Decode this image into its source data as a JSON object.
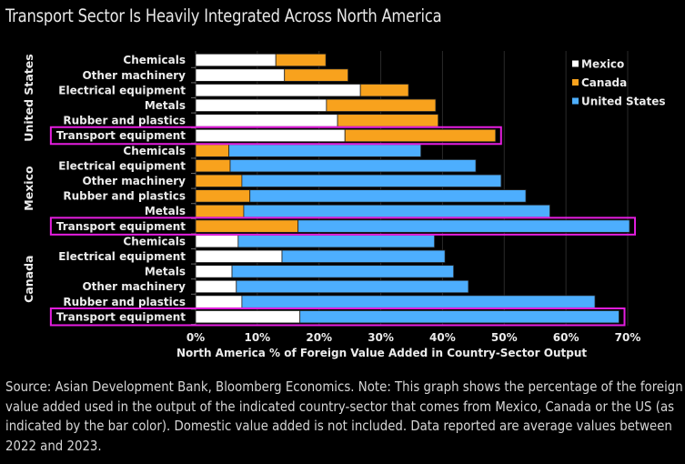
{
  "title": "Transport Sector Is Heavily Integrated Across North America",
  "source_note": "Source: Asian Development Bank, Bloomberg Economics. Note: This graph shows the percentage of the foreign value added used in the output of the indicated country-sector that comes from Mexico, Canada or the US (as indicated by the bar color). Domestic value added is not included. Data reported are average values between 2022 and 2023.",
  "colors": {
    "Mexico": "#ffffff",
    "Canada": "#f8a21d",
    "United States": "#4daefe",
    "highlight": "#e51ee0",
    "gridline": "#2a2a2a"
  },
  "chart_data": {
    "type": "bar",
    "orientation": "horizontal",
    "stacked": true,
    "title": "Transport Sector Is Heavily Integrated Across North America",
    "xlabel": "North America % of Foreign Value Added in Country-Sector Output",
    "ylabel": "",
    "xlim": [
      0,
      70
    ],
    "xticks": [
      "0%",
      "10%",
      "20%",
      "30%",
      "40%",
      "50%",
      "60%",
      "70%"
    ],
    "grid": true,
    "legend": {
      "position": "top-right",
      "entries": [
        "Mexico",
        "Canada",
        "United States"
      ]
    },
    "highlighted_category": "Transport equipment",
    "groups": [
      {
        "name": "United States",
        "categories": [
          "Chemicals",
          "Other machinery",
          "Electrical equipment",
          "Metals",
          "Rubber and plastics",
          "Transport equipment"
        ],
        "series": [
          {
            "name": "Mexico",
            "values": [
              13.0,
              14.4,
              26.7,
              21.2,
              23.0,
              24.2
            ]
          },
          {
            "name": "Canada",
            "values": [
              8.1,
              10.3,
              7.8,
              17.7,
              16.3,
              24.4
            ]
          },
          {
            "name": "United States",
            "values": [
              0,
              0,
              0,
              0,
              0,
              0
            ]
          }
        ]
      },
      {
        "name": "Mexico",
        "categories": [
          "Chemicals",
          "Electrical equipment",
          "Other machinery",
          "Rubber and plastics",
          "Metals",
          "Transport equipment"
        ],
        "series": [
          {
            "name": "Mexico",
            "values": [
              0,
              0,
              0,
              0,
              0,
              0
            ]
          },
          {
            "name": "Canada",
            "values": [
              5.4,
              5.6,
              7.5,
              8.8,
              7.8,
              16.6
            ]
          },
          {
            "name": "United States",
            "values": [
              31.1,
              39.8,
              42.0,
              44.7,
              49.6,
              53.7
            ]
          }
        ]
      },
      {
        "name": "Canada",
        "categories": [
          "Chemicals",
          "Electrical equipment",
          "Metals",
          "Other machinery",
          "Rubber and plastics",
          "Transport equipment"
        ],
        "series": [
          {
            "name": "Mexico",
            "values": [
              6.9,
              14.0,
              5.9,
              6.6,
              7.5,
              16.9
            ]
          },
          {
            "name": "Canada",
            "values": [
              0,
              0,
              0,
              0,
              0,
              0
            ]
          },
          {
            "name": "United States",
            "values": [
              31.8,
              26.4,
              35.9,
              37.6,
              57.2,
              51.7
            ]
          }
        ]
      }
    ]
  }
}
